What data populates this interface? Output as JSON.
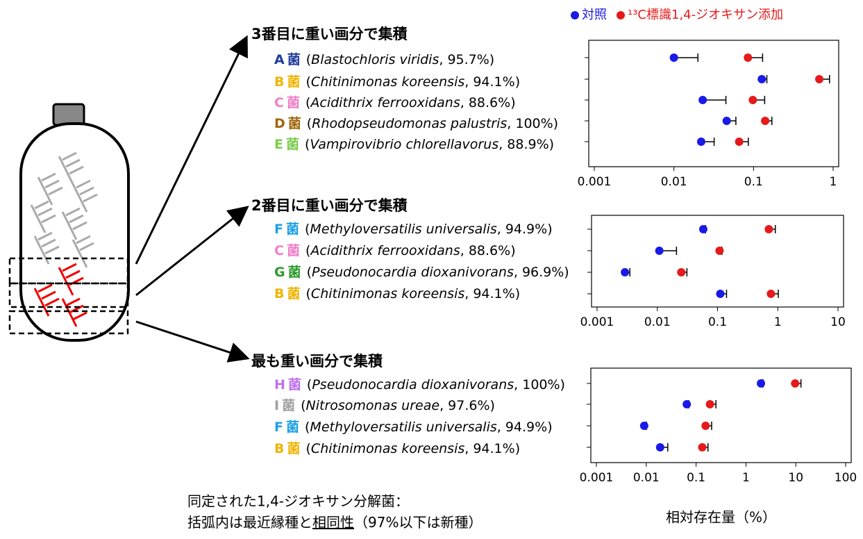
{
  "chart_data": [
    {
      "type": "dot",
      "title": "3番目に重い画分で集積",
      "xscale": "log",
      "xlim": [
        0.001,
        1
      ],
      "xticks": [
        0.001,
        0.01,
        0.1,
        1
      ],
      "series": [
        {
          "name": "対照",
          "color": "#1a1ae6",
          "values": [
            0.01,
            0.127,
            0.023,
            0.046,
            0.022
          ],
          "errors": [
            0.01,
            0.02,
            0.022,
            0.014,
            0.01
          ]
        },
        {
          "name": "¹³C標識1,4-ジオキサン添加",
          "color": "#e61a1a",
          "values": [
            0.085,
            0.67,
            0.098,
            0.14,
            0.066
          ],
          "errors": [
            0.045,
            0.23,
            0.04,
            0.03,
            0.02
          ]
        }
      ],
      "rows": [
        {
          "letter": "A",
          "bacterium": "菌",
          "color": "#1f3b9c",
          "note": [
            "(",
            "Blastochloris viridis",
            ", 95.7%)"
          ]
        },
        {
          "letter": "B",
          "bacterium": "菌",
          "color": "#f0b400",
          "note": [
            "(",
            "Chitinimonas koreensis",
            ", 94.1%)"
          ]
        },
        {
          "letter": "C",
          "bacterium": "菌",
          "color": "#f080c8",
          "note": [
            "(",
            "Acidithrix ferrooxidans",
            ", 88.6%)"
          ]
        },
        {
          "letter": "D",
          "bacterium": "菌",
          "color": "#a0650a",
          "note": [
            "(",
            "Rhodopseudomonas palustris",
            ", 100%)"
          ]
        },
        {
          "letter": "E",
          "bacterium": "菌",
          "color": "#7ccc50",
          "note": [
            "(",
            "Vampirovibrio chlorellavorus",
            ", 88.9%)"
          ]
        }
      ]
    },
    {
      "type": "dot",
      "title": "2番目に重い画分で集積",
      "xscale": "log",
      "xlim": [
        0.001,
        10
      ],
      "xticks": [
        0.001,
        0.01,
        0.1,
        1,
        10
      ],
      "series": [
        {
          "color": "#1a1ae6",
          "values": [
            0.058,
            0.0108,
            0.0029,
            0.111
          ],
          "errors": [
            0.005,
            0.01,
            0.0006,
            0.03
          ]
        },
        {
          "color": "#e61a1a",
          "values": [
            0.71,
            0.108,
            0.025,
            0.77
          ],
          "errors": [
            0.2,
            0.01,
            0.006,
            0.25
          ]
        }
      ],
      "rows": [
        {
          "letter": "F",
          "bacterium": "菌",
          "color": "#1ea0e6",
          "note": [
            "(",
            "Methyloversatilis universalis",
            ", 94.9%)"
          ]
        },
        {
          "letter": "C",
          "bacterium": "菌",
          "color": "#f080c8",
          "note": [
            "(",
            "Acidithrix ferrooxidans",
            ", 88.6%)"
          ]
        },
        {
          "letter": "G",
          "bacterium": "菌",
          "color": "#2a9a2a",
          "note": [
            "(",
            "Pseudonocardia dioxanivorans",
            ", 96.9%)"
          ]
        },
        {
          "letter": "B",
          "bacterium": "菌",
          "color": "#f0b400",
          "note": [
            "(",
            "Chitinimonas koreensis",
            ", 94.1%)"
          ]
        }
      ]
    },
    {
      "type": "dot",
      "title": "最も重い画分で集積",
      "xscale": "log",
      "xlim": [
        0.001,
        100
      ],
      "xticks": [
        0.001,
        0.01,
        0.1,
        1,
        10,
        100
      ],
      "xlabel": "相対存在量（%）",
      "series": [
        {
          "color": "#1a1ae6",
          "values": [
            2.0,
            0.065,
            0.0091,
            0.019
          ],
          "errors": [
            0.2,
            0.006,
            0.001,
            0.008
          ]
        },
        {
          "color": "#e61a1a",
          "values": [
            9.7,
            0.19,
            0.155,
            0.133
          ],
          "errors": [
            3,
            0.06,
            0.05,
            0.04
          ]
        }
      ],
      "rows": [
        {
          "letter": "H",
          "bacterium": "菌",
          "color": "#c070f0",
          "note": [
            "(",
            "Pseudonocardia dioxanivorans",
            ", 100%)"
          ]
        },
        {
          "letter": "I",
          "bacterium": "菌",
          "color": "#a0a0a0",
          "note": [
            "(",
            "Nitrosomonas ureae",
            ", 97.6%)"
          ]
        },
        {
          "letter": "F",
          "bacterium": "菌",
          "color": "#1ea0e6",
          "note": [
            "(",
            "Methyloversatilis universalis",
            ", 94.9%)"
          ]
        },
        {
          "letter": "B",
          "bacterium": "菌",
          "color": "#f0b400",
          "note": [
            "(",
            "Chitinimonas koreensis",
            ", 94.1%)"
          ]
        }
      ]
    }
  ],
  "caption": {
    "line1": "同定された1,4-ジオキサン分解菌：",
    "line2": [
      "括弧内は最近縁種と",
      "相同性",
      "（97%以下は新種）"
    ]
  }
}
